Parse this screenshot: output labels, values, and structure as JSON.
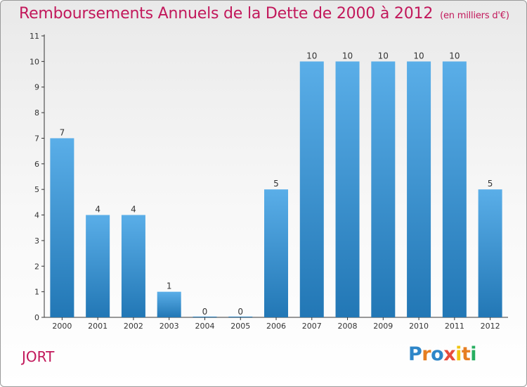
{
  "header": {
    "title": "Remboursements Annuels de la Dette de 2000 à 2012",
    "unit": "(en milliers d'€)"
  },
  "footer": {
    "subject": "JORT",
    "logo": [
      "P",
      "r",
      "o",
      "x",
      "i",
      "t",
      "i"
    ]
  },
  "colors": {
    "title": "#c2185b",
    "bar_top": "#5aaee8",
    "bar_bottom": "#2277b5",
    "logo": [
      "#2e86c8",
      "#e67e22",
      "#2e86c8",
      "#e74c3c",
      "#f1c40f",
      "#e67e22",
      "#27ae60"
    ]
  },
  "chart_data": {
    "type": "bar",
    "title": "Remboursements Annuels de la Dette de 2000 à 2012",
    "unit": "(en milliers d'€)",
    "categories": [
      "2000",
      "2001",
      "2002",
      "2003",
      "2004",
      "2005",
      "2006",
      "2007",
      "2008",
      "2009",
      "2010",
      "2011",
      "2012"
    ],
    "values": [
      7,
      4,
      4,
      1,
      0,
      0,
      5,
      10,
      10,
      10,
      10,
      10,
      5
    ],
    "ylim": [
      0,
      11
    ],
    "yticks": [
      0,
      1,
      2,
      3,
      4,
      5,
      6,
      7,
      8,
      9,
      10,
      11
    ],
    "grid": false,
    "data_labels": true
  }
}
